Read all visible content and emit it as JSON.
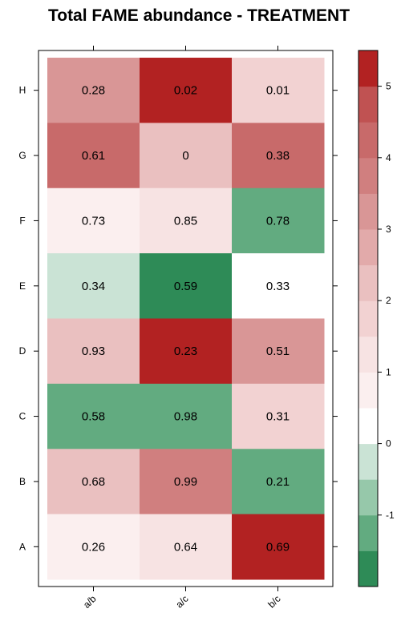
{
  "chart_data": {
    "type": "heatmap",
    "title": "Total FAME abundance - TREATMENT",
    "xlabel": "",
    "ylabel": "",
    "x_categories": [
      "a/b",
      "a/c",
      "b/c"
    ],
    "y_categories": [
      "A",
      "B",
      "C",
      "D",
      "E",
      "F",
      "G",
      "H"
    ],
    "cells": [
      {
        "x": "a/b",
        "y": "H",
        "label": "0.28",
        "color_value": 3.1
      },
      {
        "x": "a/c",
        "y": "H",
        "label": "0.02",
        "color_value": 5.2
      },
      {
        "x": "b/c",
        "y": "H",
        "label": "0.01",
        "color_value": 1.5
      },
      {
        "x": "a/b",
        "y": "G",
        "label": "0.61",
        "color_value": 4.4
      },
      {
        "x": "a/c",
        "y": "G",
        "label": "0",
        "color_value": 2.1
      },
      {
        "x": "b/c",
        "y": "G",
        "label": "0.38",
        "color_value": 4.2
      },
      {
        "x": "a/b",
        "y": "F",
        "label": "0.73",
        "color_value": 0.6
      },
      {
        "x": "a/c",
        "y": "F",
        "label": "0.85",
        "color_value": 1.4
      },
      {
        "x": "b/c",
        "y": "F",
        "label": "0.78",
        "color_value": -1.2
      },
      {
        "x": "a/b",
        "y": "E",
        "label": "0.34",
        "color_value": -0.4
      },
      {
        "x": "a/c",
        "y": "E",
        "label": "0.59",
        "color_value": -1.8
      },
      {
        "x": "b/c",
        "y": "E",
        "label": "0.33",
        "color_value": 0.0
      },
      {
        "x": "a/b",
        "y": "D",
        "label": "0.93",
        "color_value": 2.3
      },
      {
        "x": "a/c",
        "y": "D",
        "label": "0.23",
        "color_value": 5.0
      },
      {
        "x": "b/c",
        "y": "D",
        "label": "0.51",
        "color_value": 3.4
      },
      {
        "x": "a/b",
        "y": "C",
        "label": "0.58",
        "color_value": -1.3
      },
      {
        "x": "a/c",
        "y": "C",
        "label": "0.98",
        "color_value": -1.3
      },
      {
        "x": "b/c",
        "y": "C",
        "label": "0.31",
        "color_value": 1.5
      },
      {
        "x": "a/b",
        "y": "B",
        "label": "0.68",
        "color_value": 2.3
      },
      {
        "x": "a/c",
        "y": "B",
        "label": "0.99",
        "color_value": 3.6
      },
      {
        "x": "b/c",
        "y": "B",
        "label": "0.21",
        "color_value": -1.2
      },
      {
        "x": "a/b",
        "y": "A",
        "label": "0.26",
        "color_value": 0.6
      },
      {
        "x": "a/c",
        "y": "A",
        "label": "0.64",
        "color_value": 1.4
      },
      {
        "x": "b/c",
        "y": "A",
        "label": "0.69",
        "color_value": 5.0
      }
    ],
    "colorbar": {
      "ticks": [
        -1,
        0,
        1,
        2,
        3,
        4,
        5
      ],
      "range": [
        -2,
        5.5
      ],
      "steps": [
        {
          "from": -2.0,
          "to": -1.5,
          "color": "#2e8b57"
        },
        {
          "from": -1.5,
          "to": -1.0,
          "color": "#62ab80"
        },
        {
          "from": -1.0,
          "to": -0.5,
          "color": "#96c8aa"
        },
        {
          "from": -0.5,
          "to": 0.0,
          "color": "#cae3d5"
        },
        {
          "from": 0.0,
          "to": 0.5,
          "color": "#ffffff"
        },
        {
          "from": 0.5,
          "to": 1.0,
          "color": "#fbefef"
        },
        {
          "from": 1.0,
          "to": 1.5,
          "color": "#f7e3e3"
        },
        {
          "from": 1.5,
          "to": 2.0,
          "color": "#f2d2d2"
        },
        {
          "from": 2.0,
          "to": 2.5,
          "color": "#eac0c0"
        },
        {
          "from": 2.5,
          "to": 3.0,
          "color": "#e2aaaa"
        },
        {
          "from": 3.0,
          "to": 3.5,
          "color": "#d99696"
        },
        {
          "from": 3.5,
          "to": 4.0,
          "color": "#d07f7f"
        },
        {
          "from": 4.0,
          "to": 4.5,
          "color": "#c86a6a"
        },
        {
          "from": 4.5,
          "to": 5.0,
          "color": "#c05252"
        },
        {
          "from": 5.0,
          "to": 5.5,
          "color": "#b22222"
        }
      ]
    },
    "grid": false,
    "legend": "colorbar-right"
  }
}
